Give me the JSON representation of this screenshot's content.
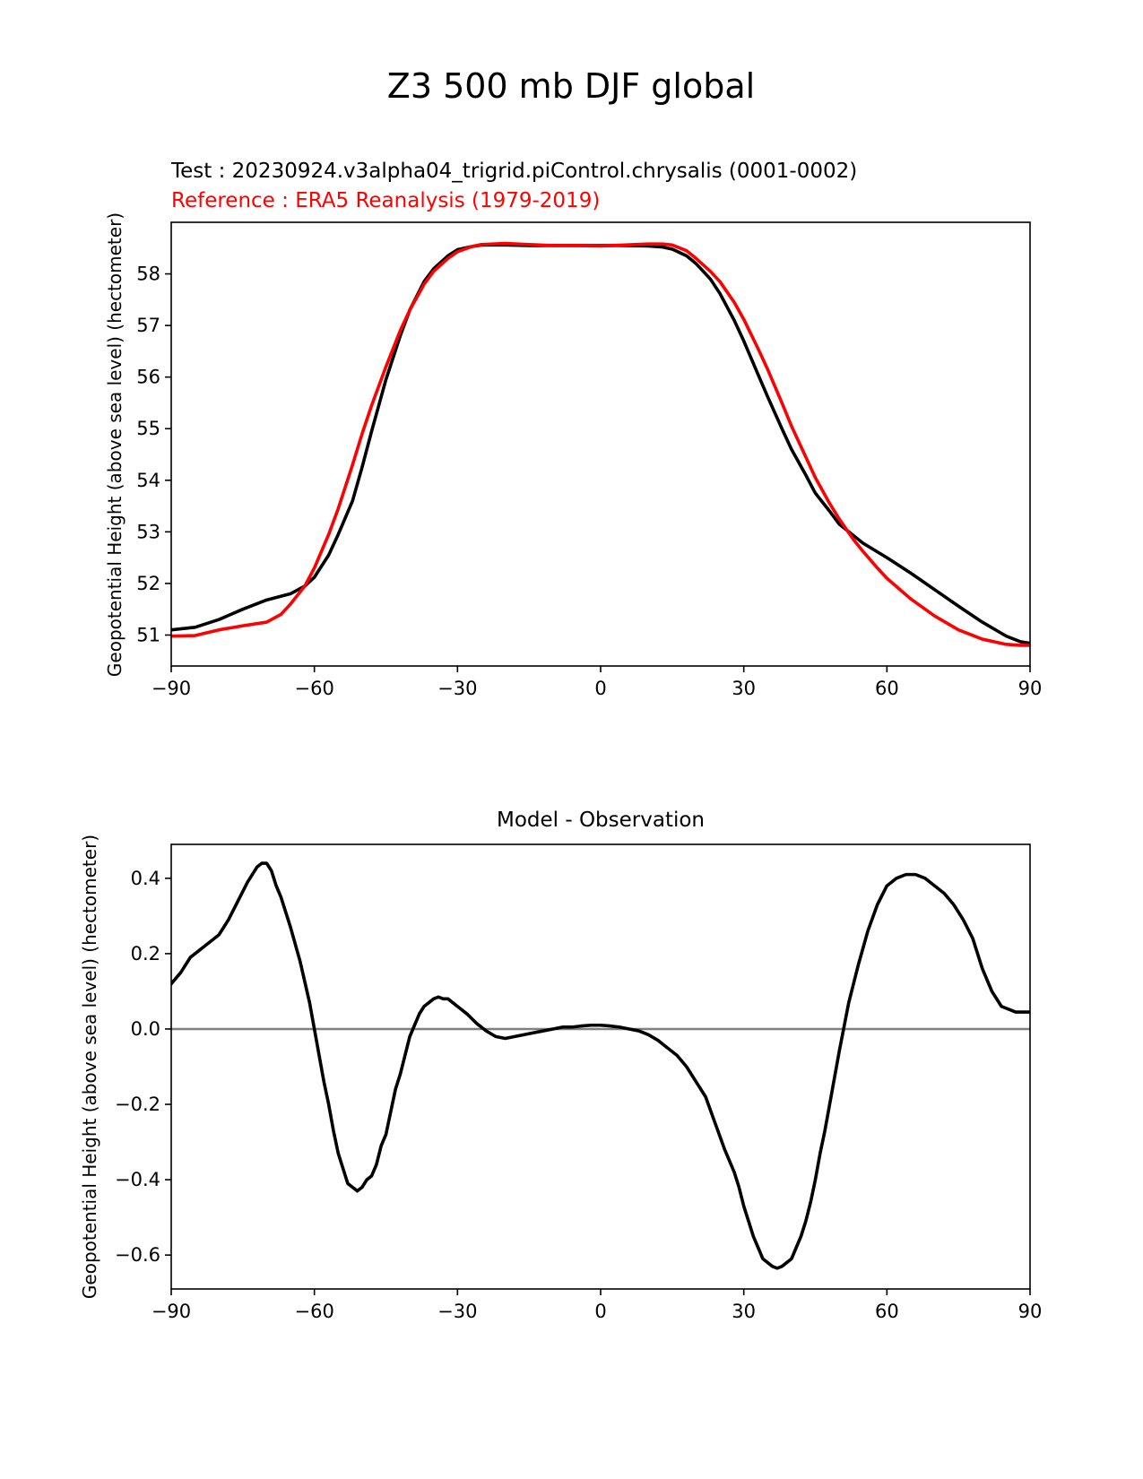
{
  "figure_title": "Z3 500 mb DJF global",
  "chart_data": [
    {
      "type": "line",
      "test_label": "Test : 20230924.v3alpha04_trigrid.piControl.chrysalis (0001-0002)",
      "reference_label": "Reference : ERA5 Reanalysis (1979-2019)",
      "ylabel": "Geopotential Height (above sea level) (hectometer)",
      "xlim": [
        -90,
        90
      ],
      "ylim": [
        50.4,
        59
      ],
      "x_ticks": [
        -90,
        -60,
        -30,
        0,
        30,
        60,
        90
      ],
      "x_tick_labels": [
        "−90",
        "−60",
        "−30",
        "0",
        "30",
        "60",
        "90"
      ],
      "y_ticks": [
        51,
        52,
        53,
        54,
        55,
        56,
        57,
        58
      ],
      "y_tick_labels": [
        "51",
        "52",
        "53",
        "54",
        "55",
        "56",
        "57",
        "58"
      ],
      "grid": false,
      "series": [
        {
          "role": "test",
          "color": "#000000",
          "x": [
            -90,
            -85,
            -80,
            -75,
            -70,
            -65,
            -62,
            -60,
            -57,
            -55,
            -52,
            -50,
            -48,
            -45,
            -42,
            -40,
            -37,
            -35,
            -32,
            -30,
            -27,
            -25,
            -20,
            -15,
            -10,
            -5,
            0,
            5,
            10,
            13,
            15,
            18,
            20,
            23,
            25,
            28,
            30,
            33,
            35,
            38,
            40,
            43,
            45,
            48,
            50,
            55,
            60,
            65,
            70,
            75,
            80,
            85,
            88,
            90
          ],
          "y": [
            51.1,
            51.15,
            51.3,
            51.5,
            51.68,
            51.8,
            51.95,
            52.12,
            52.55,
            52.95,
            53.6,
            54.25,
            54.95,
            55.95,
            56.8,
            57.3,
            57.85,
            58.1,
            58.35,
            58.47,
            58.53,
            58.56,
            58.56,
            58.55,
            58.55,
            58.55,
            58.55,
            58.55,
            58.54,
            58.52,
            58.48,
            58.35,
            58.2,
            57.9,
            57.62,
            57.1,
            56.7,
            56.05,
            55.62,
            55.0,
            54.6,
            54.1,
            53.75,
            53.4,
            53.15,
            52.78,
            52.5,
            52.2,
            51.88,
            51.56,
            51.25,
            50.98,
            50.87,
            50.84
          ]
        },
        {
          "role": "reference",
          "color": "#ff0000",
          "x": [
            -90,
            -85,
            -80,
            -75,
            -70,
            -67,
            -65,
            -62,
            -60,
            -57,
            -55,
            -52,
            -50,
            -48,
            -45,
            -42,
            -40,
            -37,
            -35,
            -32,
            -30,
            -27,
            -25,
            -20,
            -15,
            -10,
            -5,
            0,
            5,
            10,
            13,
            15,
            18,
            20,
            23,
            25,
            28,
            30,
            33,
            35,
            38,
            40,
            43,
            45,
            48,
            50,
            53,
            55,
            58,
            60,
            65,
            70,
            75,
            80,
            85,
            88,
            90
          ],
          "y": [
            50.98,
            50.99,
            51.1,
            51.18,
            51.25,
            51.4,
            51.6,
            51.95,
            52.3,
            52.95,
            53.45,
            54.3,
            54.9,
            55.45,
            56.2,
            56.9,
            57.3,
            57.8,
            58.05,
            58.3,
            58.43,
            58.53,
            58.57,
            58.59,
            58.57,
            58.55,
            58.55,
            58.54,
            58.56,
            58.58,
            58.58,
            58.56,
            58.45,
            58.3,
            58.05,
            57.85,
            57.45,
            57.12,
            56.55,
            56.15,
            55.5,
            55.05,
            54.45,
            54.05,
            53.55,
            53.25,
            52.85,
            52.62,
            52.3,
            52.1,
            51.7,
            51.37,
            51.1,
            50.92,
            50.82,
            50.8,
            50.8
          ]
        }
      ]
    },
    {
      "type": "line",
      "title": "Model - Observation",
      "ylabel": "Geopotential Height (above sea level) (hectometer)",
      "xlim": [
        -90,
        90
      ],
      "ylim": [
        -0.69,
        0.49
      ],
      "x_ticks": [
        -90,
        -60,
        -30,
        0,
        30,
        60,
        90
      ],
      "x_tick_labels": [
        "−90",
        "−60",
        "−30",
        "0",
        "30",
        "60",
        "90"
      ],
      "y_ticks": [
        -0.6,
        -0.4,
        -0.2,
        0.0,
        0.2,
        0.4
      ],
      "y_tick_labels": [
        "−0.6",
        "−0.4",
        "−0.2",
        "0.0",
        "0.2",
        "0.4"
      ],
      "zero_line": true,
      "grid": false,
      "series": [
        {
          "role": "difference",
          "color": "#000000",
          "x": [
            -90,
            -88,
            -86,
            -85,
            -84,
            -83,
            -80,
            -78,
            -76,
            -74,
            -72,
            -71,
            -70,
            -69,
            -68,
            -67,
            -65,
            -63,
            -61,
            -60,
            -59,
            -58,
            -57,
            -56,
            -55,
            -54,
            -53,
            -52,
            -51,
            -50,
            -49,
            -48,
            -47,
            -46,
            -45,
            -44,
            -43,
            -42,
            -41,
            -40,
            -39,
            -38,
            -37,
            -36,
            -35,
            -34,
            -33,
            -32,
            -31,
            -30,
            -28,
            -26,
            -24,
            -22,
            -20,
            -18,
            -16,
            -14,
            -12,
            -10,
            -8,
            -6,
            -4,
            -2,
            0,
            2,
            4,
            6,
            8,
            10,
            12,
            14,
            16,
            18,
            20,
            22,
            24,
            26,
            28,
            29,
            30,
            31,
            32,
            33,
            34,
            35,
            36,
            37,
            38,
            39,
            40,
            41,
            42,
            43,
            44,
            45,
            46,
            47,
            48,
            50,
            52,
            54,
            56,
            58,
            60,
            62,
            64,
            66,
            68,
            70,
            72,
            74,
            76,
            78,
            80,
            82,
            84,
            86,
            87,
            88,
            89,
            90
          ],
          "y": [
            0.12,
            0.15,
            0.19,
            0.2,
            0.21,
            0.22,
            0.25,
            0.29,
            0.34,
            0.39,
            0.43,
            0.44,
            0.44,
            0.42,
            0.38,
            0.35,
            0.27,
            0.18,
            0.07,
            0.0,
            -0.07,
            -0.14,
            -0.2,
            -0.27,
            -0.33,
            -0.37,
            -0.41,
            -0.42,
            -0.43,
            -0.42,
            -0.4,
            -0.39,
            -0.36,
            -0.31,
            -0.28,
            -0.22,
            -0.16,
            -0.12,
            -0.07,
            -0.02,
            0.01,
            0.04,
            0.06,
            0.07,
            0.08,
            0.085,
            0.08,
            0.08,
            0.07,
            0.06,
            0.04,
            0.015,
            -0.005,
            -0.02,
            -0.025,
            -0.02,
            -0.015,
            -0.01,
            -0.005,
            0.0,
            0.005,
            0.005,
            0.008,
            0.01,
            0.01,
            0.008,
            0.005,
            0.0,
            -0.005,
            -0.015,
            -0.03,
            -0.05,
            -0.07,
            -0.1,
            -0.14,
            -0.18,
            -0.25,
            -0.32,
            -0.38,
            -0.42,
            -0.47,
            -0.51,
            -0.55,
            -0.58,
            -0.61,
            -0.62,
            -0.63,
            -0.635,
            -0.63,
            -0.62,
            -0.61,
            -0.58,
            -0.55,
            -0.51,
            -0.46,
            -0.4,
            -0.33,
            -0.27,
            -0.2,
            -0.06,
            0.07,
            0.17,
            0.26,
            0.33,
            0.38,
            0.4,
            0.41,
            0.41,
            0.4,
            0.38,
            0.36,
            0.33,
            0.29,
            0.24,
            0.16,
            0.1,
            0.06,
            0.05,
            0.045,
            0.045,
            0.045,
            0.045
          ]
        }
      ]
    }
  ]
}
